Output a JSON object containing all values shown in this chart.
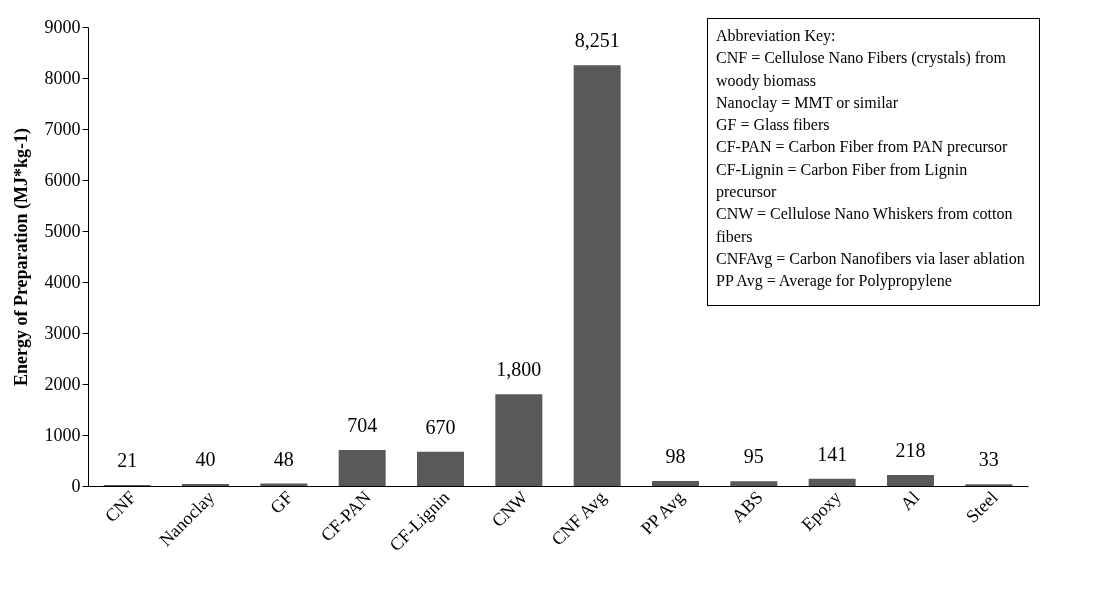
{
  "chart_data": {
    "type": "bar",
    "ylabel": "Energy of Preparation (MJ*kg-1)",
    "categories": [
      "CNF",
      "Nanoclay",
      "GF",
      "CF-PAN",
      "CF-Lignin",
      "CNW",
      "CNF Avg",
      "PP Avg",
      "ABS",
      "Epoxy",
      "Al",
      "Steel"
    ],
    "values": [
      21,
      40,
      48,
      704,
      670,
      1800,
      8251,
      98,
      95,
      141,
      218,
      33
    ],
    "color": "#595959",
    "ylim": [
      0,
      9000
    ],
    "yticks": [
      0,
      1000,
      2000,
      3000,
      4000,
      5000,
      6000,
      7000,
      8000,
      9000
    ],
    "grid": false,
    "value_labels": [
      "21",
      "40",
      "48",
      "704",
      "670",
      "1,800",
      "8,251",
      "98",
      "95",
      "141",
      "218",
      "33"
    ],
    "annotations": [
      "Abbreviation Key:",
      "CNF = Cellulose Nano Fibers (crystals) from woody biomass",
      "Nanoclay = MMT or similar",
      "GF = Glass fibers",
      "CF-PAN = Carbon Fiber from PAN precursor",
      "CF-Lignin = Carbon Fiber from Lignin precursor",
      "CNW = Cellulose Nano Whiskers from cotton fibers",
      "CNFAvg = Carbon Nanofibers via laser ablation",
      "PP Avg = Average for Polypropylene"
    ]
  }
}
